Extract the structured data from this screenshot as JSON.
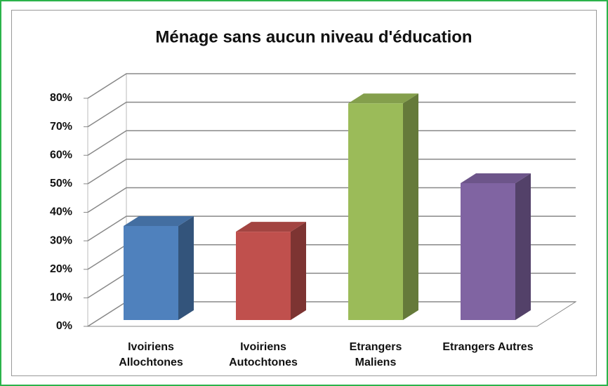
{
  "chart_data": {
    "type": "bar3d",
    "title": "Ménage sans aucun niveau d'éducation",
    "categories": [
      "Ivoiriens Allochtones",
      "Ivoiriens Autochtones",
      "Etrangers Maliens",
      "Etrangers Autres"
    ],
    "values": [
      33,
      31,
      76,
      48
    ],
    "colors": [
      "#4f81bd",
      "#c0504d",
      "#9bbb59",
      "#8064a2"
    ],
    "ylim": [
      0,
      80
    ],
    "yticks": [
      {
        "value": 0,
        "label": "0%"
      },
      {
        "value": 10,
        "label": "10%"
      },
      {
        "value": 20,
        "label": "20%"
      },
      {
        "value": 30,
        "label": "30%"
      },
      {
        "value": 40,
        "label": "40%"
      },
      {
        "value": 50,
        "label": "50%"
      },
      {
        "value": 60,
        "label": "60%"
      },
      {
        "value": 70,
        "label": "70%"
      },
      {
        "value": 80,
        "label": "80%"
      }
    ],
    "grid": true
  }
}
